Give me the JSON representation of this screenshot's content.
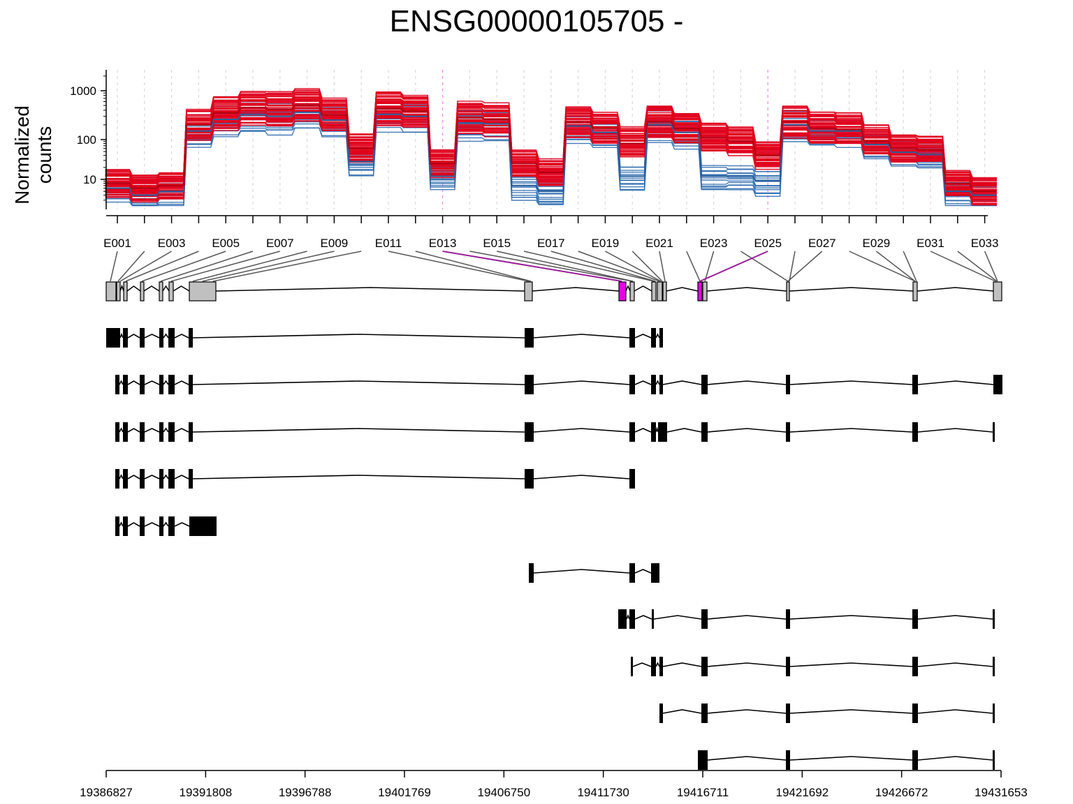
{
  "chart_data": {
    "type": "line",
    "title": "ENSG00000105705 -",
    "ylabel": "Normalized counts",
    "y_scale": "log",
    "y_ticks": [
      10,
      100,
      1000
    ],
    "y_tick_labels": [
      "10",
      "100",
      "1000"
    ],
    "grid": "vertical dashed lines at each exon",
    "colors": {
      "high_group": "#e0001b",
      "low_group": "#2f6db0",
      "highlight": "#e600e6",
      "exon_fill": "#c0c0c0",
      "transcript": "#000000",
      "connector": "#555555",
      "highlight_connector": "#9b1c9b"
    },
    "exons": [
      "E001",
      "E002",
      "E003",
      "E004",
      "E005",
      "E006",
      "E007",
      "E008",
      "E009",
      "E010",
      "E011",
      "E012",
      "E013",
      "E014",
      "E015",
      "E016",
      "E017",
      "E018",
      "E019",
      "E020",
      "E021",
      "E022",
      "E023",
      "E024",
      "E025",
      "E026",
      "E027",
      "E028",
      "E029",
      "E030",
      "E031",
      "E032",
      "E033"
    ],
    "exon_labels_shown": [
      "E001",
      "E003",
      "E005",
      "E007",
      "E009",
      "E011",
      "E013",
      "E015",
      "E017",
      "E019",
      "E021",
      "E023",
      "E025",
      "E027",
      "E029",
      "E031",
      "E033"
    ],
    "highlighted_exons": [
      "E013",
      "E025"
    ],
    "series": [
      {
        "name": "",
        "color": "#e0001b",
        "values": [
          8,
          6,
          7,
          200,
          350,
          450,
          420,
          500,
          320,
          60,
          430,
          380,
          25,
          280,
          260,
          25,
          15,
          230,
          170,
          80,
          230,
          170,
          110,
          90,
          40,
          230,
          170,
          160,
          90,
          60,
          55,
          8,
          5
        ]
      },
      {
        "name": "",
        "color": "#2f6db0",
        "values": [
          6,
          4,
          5,
          150,
          260,
          330,
          300,
          360,
          250,
          28,
          330,
          300,
          12,
          220,
          210,
          7,
          5,
          190,
          140,
          12,
          200,
          140,
          12,
          12,
          9,
          200,
          150,
          150,
          75,
          48,
          42,
          5,
          4
        ]
      }
    ],
    "x_axis": {
      "ticks": [
        19386827,
        19391808,
        19396788,
        19401769,
        19406750,
        19411730,
        19416711,
        19421692,
        19426672,
        19431653
      ],
      "tick_labels": [
        "19386827",
        "19391808",
        "19396788",
        "19401769",
        "19406750",
        "19411730",
        "19416711",
        "19421692",
        "19426672",
        "19431653"
      ]
    },
    "transcript_count": 11
  }
}
